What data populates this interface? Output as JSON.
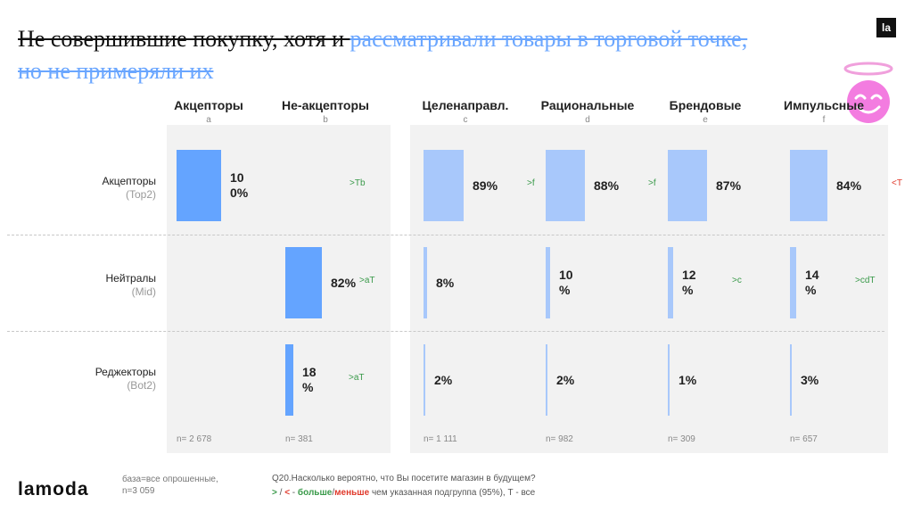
{
  "header": {
    "title_dark": "Не совершившие покупку, хотя и ",
    "title_blue_1": "рассматривали товары в торговой точке,",
    "title_blue_2": "но не примеряли их",
    "logo_mark": "la"
  },
  "brand": {
    "logo": "lamoda"
  },
  "colors": {
    "bar_dark": "#64a4ff",
    "bar_light": "#a8c8fb",
    "panel": "#f2f2f2",
    "sig_green": "#3a9a4a",
    "sig_red": "#e0392b"
  },
  "chart_data": {
    "type": "bar",
    "orientation": "vertical-grid",
    "value_unit": "%",
    "row_categories": [
      {
        "name": "Акцепторы",
        "sub": "(Top2)"
      },
      {
        "name": "Нейтралы",
        "sub": "(Mid)"
      },
      {
        "name": "Реджекторы",
        "sub": "(Bot2)"
      }
    ],
    "series": [
      {
        "name": "Акцепторы",
        "letter": "a",
        "values": [
          100,
          0,
          0
        ],
        "labels": [
          "10\n0%",
          "",
          ""
        ],
        "sig": [
          "",
          "",
          ""
        ],
        "sig_color": [
          "",
          "",
          ""
        ],
        "n": "n= 2 678"
      },
      {
        "name": "Не-акцепторы",
        "letter": "b",
        "values": [
          0,
          82,
          18
        ],
        "labels": [
          "",
          "82%",
          "18\n%"
        ],
        "sig": [
          ">Tb",
          ">aT",
          ">aT"
        ],
        "sig_color": [
          "green",
          "green",
          "green"
        ],
        "n": "n= 381"
      },
      {
        "name": "Целенаправл.",
        "letter": "c",
        "values": [
          89,
          8,
          2
        ],
        "labels": [
          "89%",
          "8%",
          "2%"
        ],
        "sig": [
          ">f",
          "",
          ""
        ],
        "sig_color": [
          "green",
          "",
          ""
        ],
        "n": "n= 1 111"
      },
      {
        "name": "Рациональные",
        "letter": "d",
        "values": [
          88,
          10,
          2
        ],
        "labels": [
          "88%",
          "10\n%",
          "2%"
        ],
        "sig": [
          ">f",
          "",
          ""
        ],
        "sig_color": [
          "green",
          "",
          ""
        ],
        "n": "n= 982"
      },
      {
        "name": "Брендовые",
        "letter": "e",
        "values": [
          87,
          12,
          1
        ],
        "labels": [
          "87%",
          "12\n%",
          "1%"
        ],
        "sig": [
          "",
          ">c",
          ""
        ],
        "sig_color": [
          "",
          "green",
          ""
        ],
        "n": "n= 309"
      },
      {
        "name": "Импульсные",
        "letter": "f",
        "values": [
          84,
          14,
          3
        ],
        "labels": [
          "84%",
          "14\n%",
          "3%"
        ],
        "sig": [
          "<T",
          ">cdT",
          ""
        ],
        "sig_color": [
          "red",
          "green",
          ""
        ],
        "n": "n= 657"
      }
    ],
    "ylim": [
      0,
      100
    ]
  },
  "footer": {
    "base_line1": "база=все опрошенные,",
    "base_line2": "n=3 059",
    "question": "Q20.Насколько вероятно, что Вы посетите магазин в будущем?",
    "legend_gt": ">",
    "legend_sep1": " / ",
    "legend_lt": "<",
    "legend_dash": " - ",
    "legend_more": "больше",
    "legend_slash": "/",
    "legend_less": "меньше",
    "legend_rest": " чем указанная подгруппа (95%), Т - все"
  }
}
